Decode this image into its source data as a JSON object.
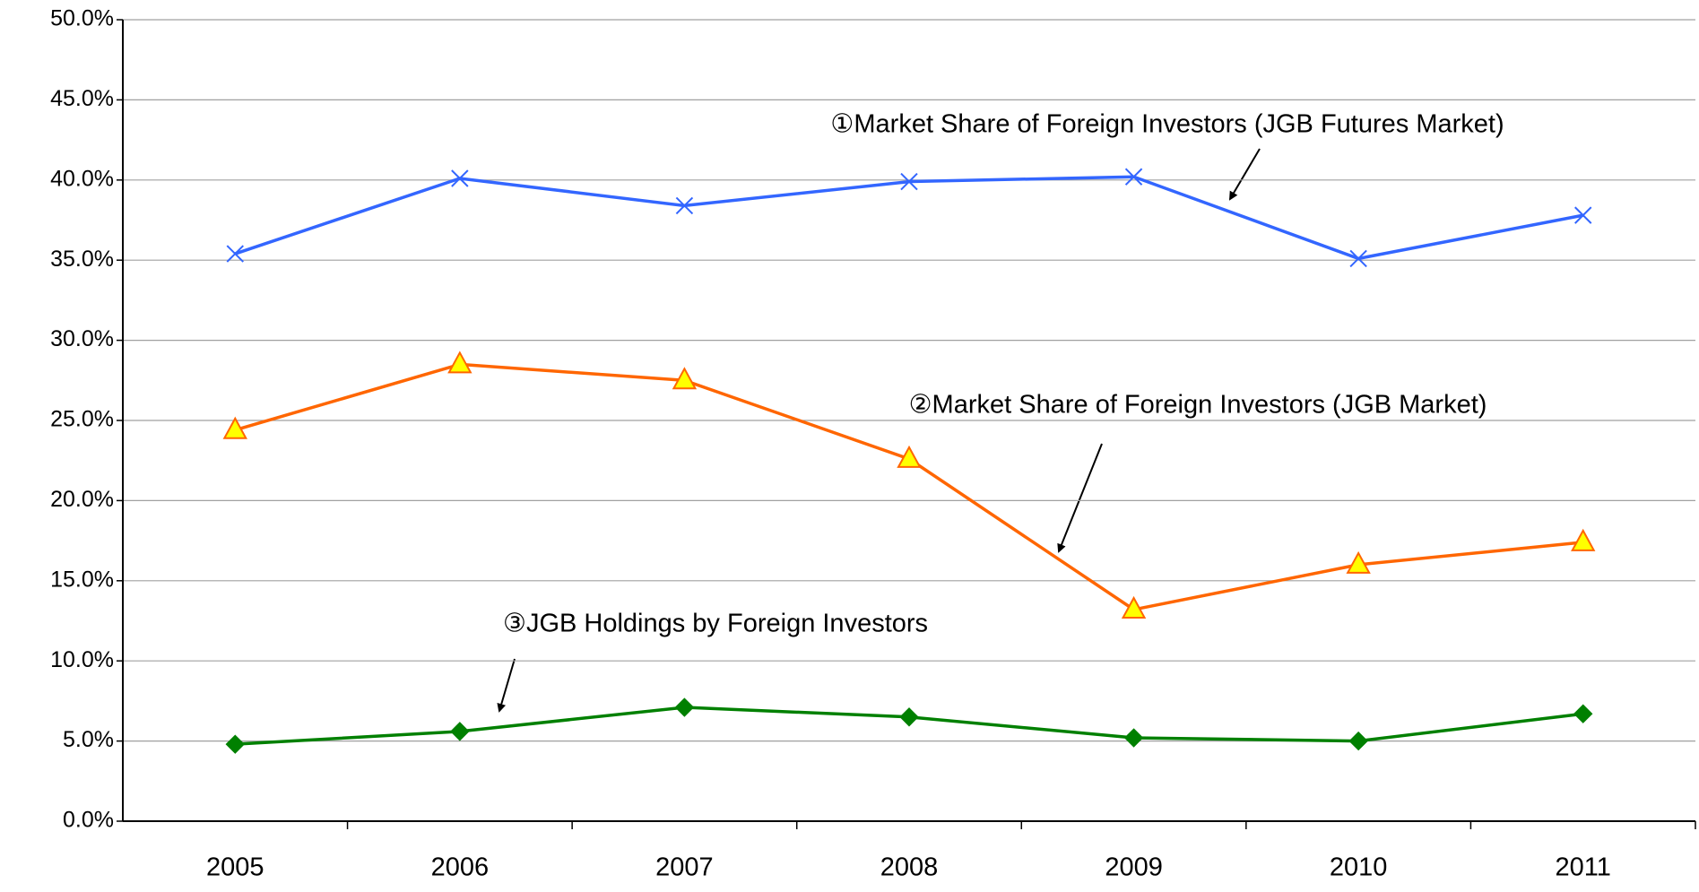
{
  "chart_data": {
    "type": "line",
    "categories": [
      "2005",
      "2006",
      "2007",
      "2008",
      "2009",
      "2010",
      "2011"
    ],
    "series": [
      {
        "name": "①Market Share of Foreign Investors (JGB Futures Market)",
        "color": "#3366ff",
        "marker": "x",
        "values": [
          35.4,
          40.1,
          38.4,
          39.9,
          40.2,
          35.1,
          37.8
        ]
      },
      {
        "name": "②Market Share of Foreign Investors (JGB Market)",
        "color": "#ff6600",
        "marker": "triangle",
        "values": [
          24.4,
          28.5,
          27.5,
          22.6,
          13.2,
          16.0,
          17.4
        ]
      },
      {
        "name": "③JGB Holdings by Foreign Investors",
        "color": "#008000",
        "marker": "diamond",
        "values": [
          4.8,
          5.6,
          7.1,
          6.5,
          5.2,
          5.0,
          6.7
        ]
      }
    ],
    "ylim": [
      0,
      50
    ],
    "yticks": [
      {
        "value": 0,
        "label": "0.0%"
      },
      {
        "value": 5,
        "label": "5.0%"
      },
      {
        "value": 10,
        "label": "10.0%"
      },
      {
        "value": 15,
        "label": "15.0%"
      },
      {
        "value": 20,
        "label": "20.0%"
      },
      {
        "value": 25,
        "label": "25.0%"
      },
      {
        "value": 30,
        "label": "30.0%"
      },
      {
        "value": 35,
        "label": "35.0%"
      },
      {
        "value": 40,
        "label": "40.0%"
      },
      {
        "value": 45,
        "label": "45.0%"
      },
      {
        "value": 50,
        "label": "50.0%"
      }
    ],
    "grid": true
  }
}
